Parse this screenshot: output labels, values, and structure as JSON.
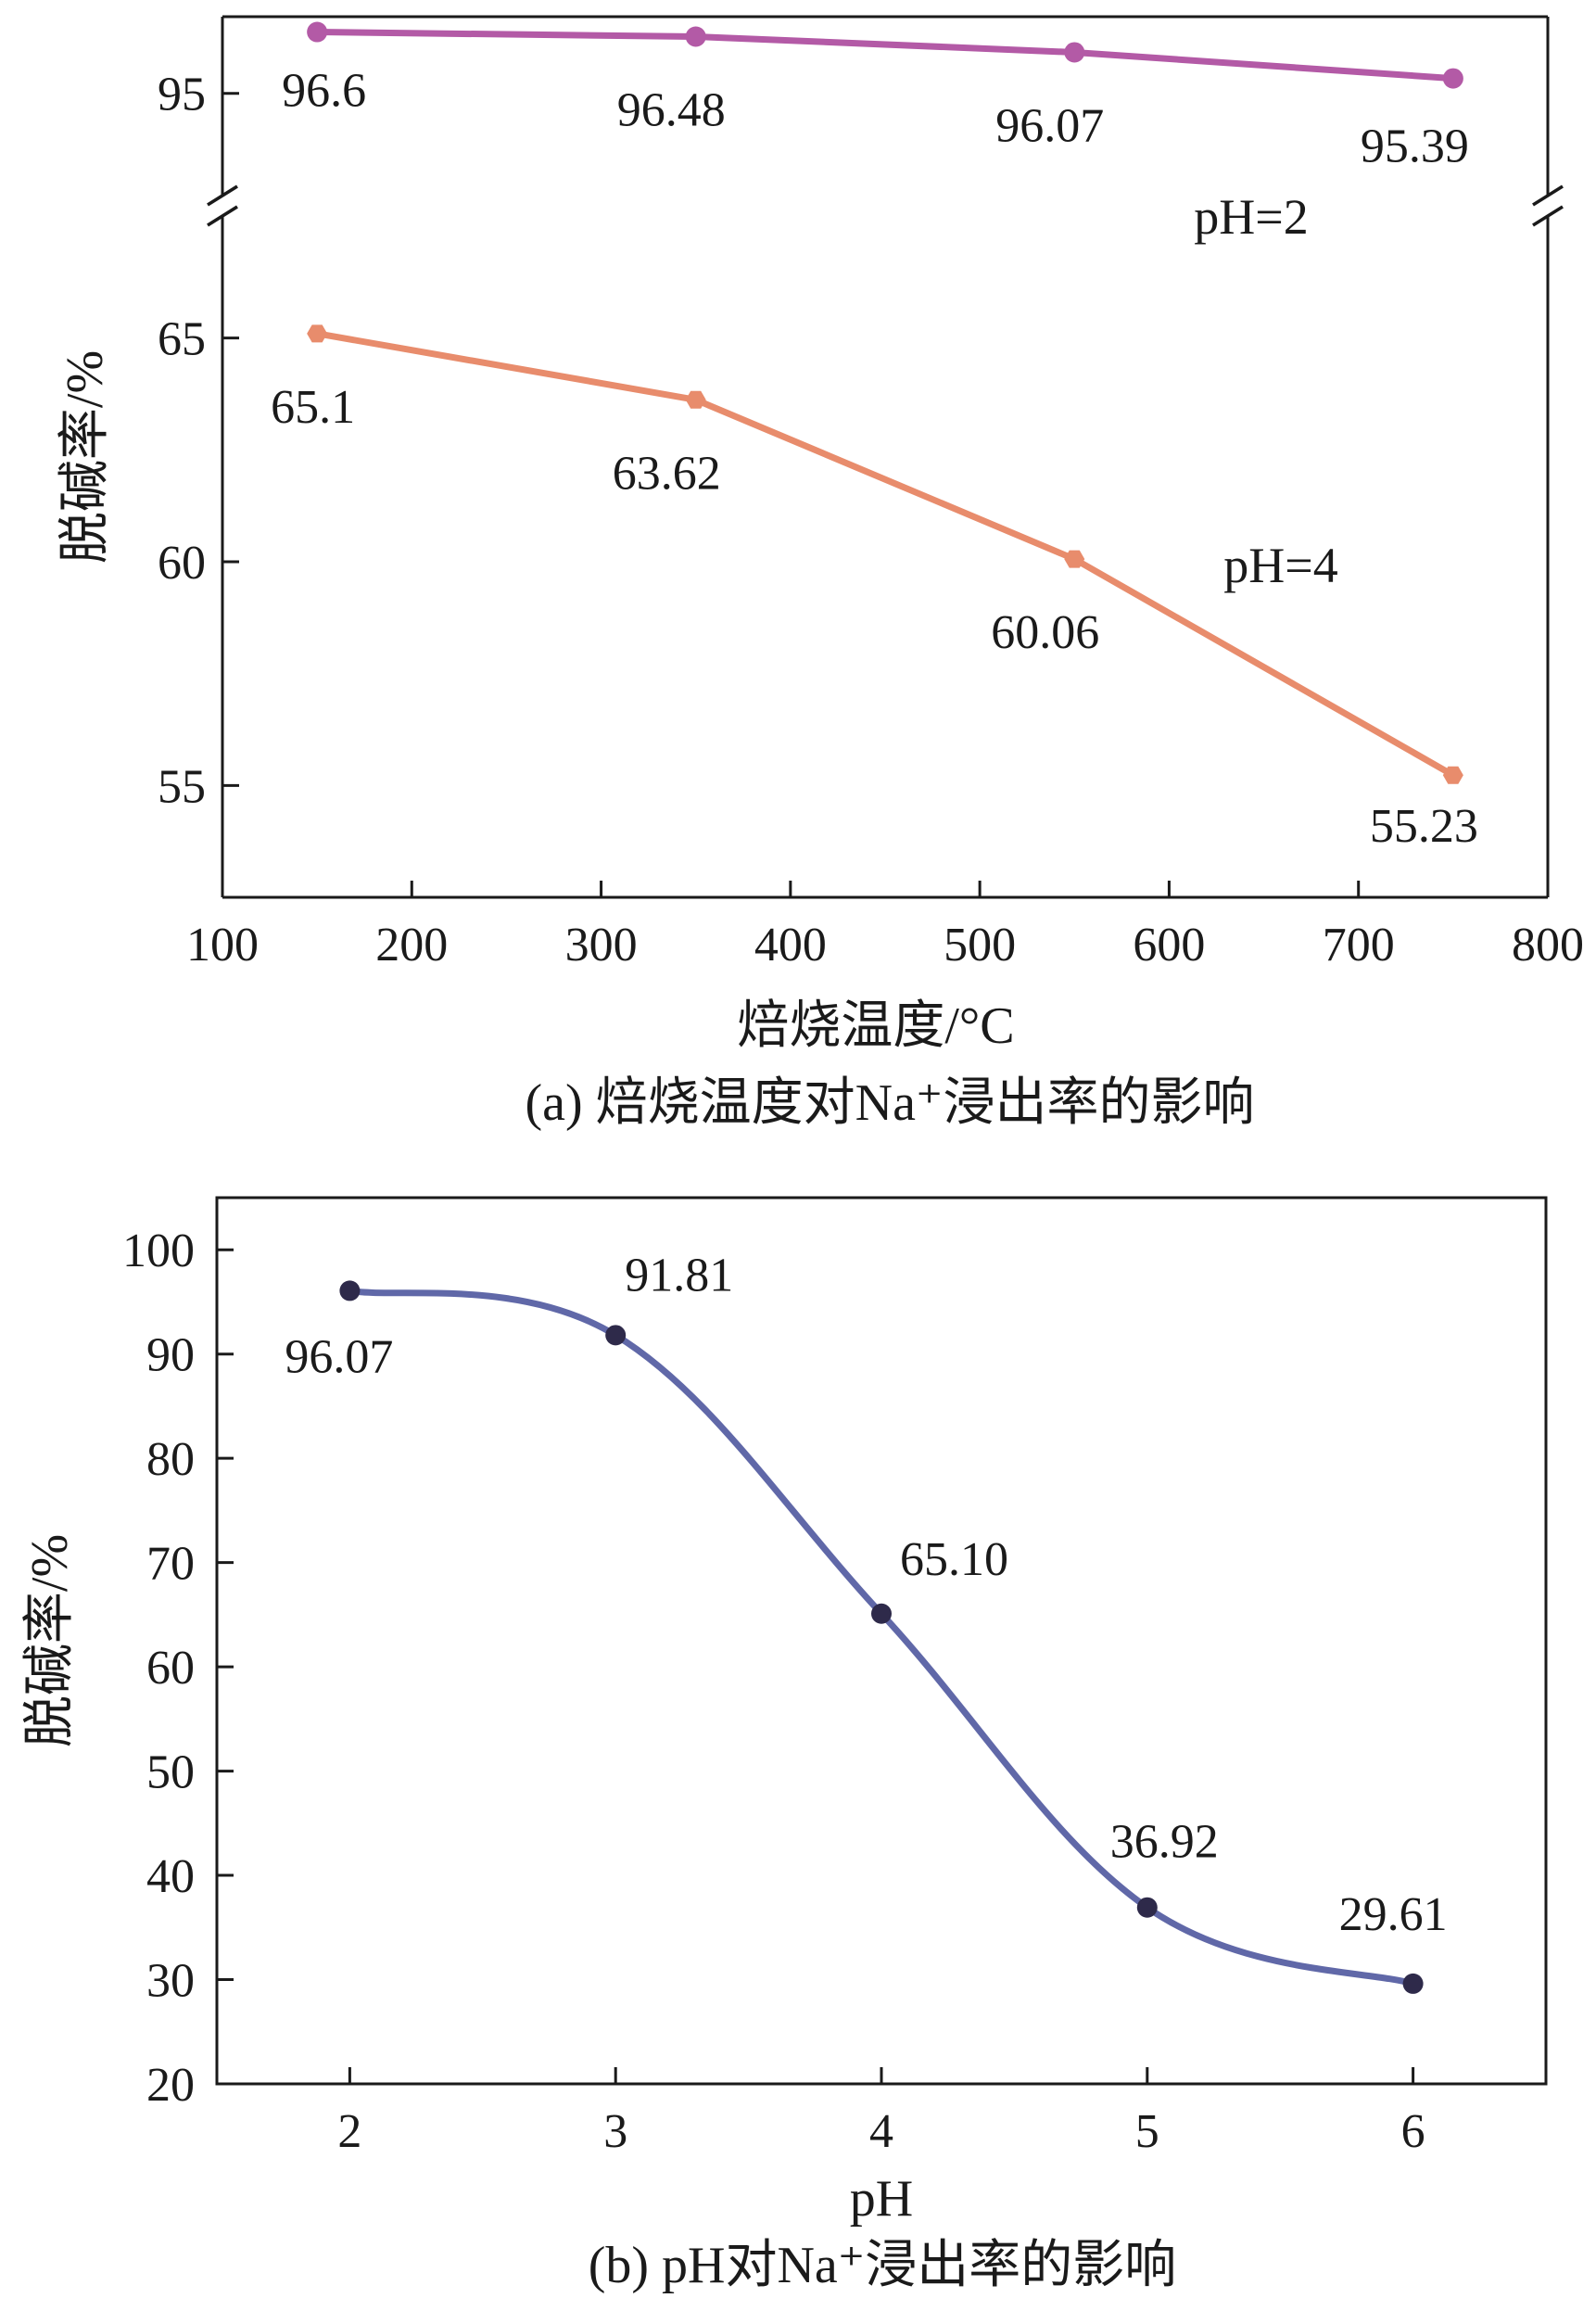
{
  "chart_data": [
    {
      "type": "line",
      "caption": "(a) 焙烧温度对Na⁺浸出率的影响",
      "xlabel": "焙烧温度/°C",
      "ylabel": "脱碱率/%",
      "xlim": [
        100,
        800
      ],
      "xticks": [
        "100",
        "200",
        "300",
        "400",
        "500",
        "600",
        "700",
        "800"
      ],
      "y_axis_break": true,
      "y_segments": [
        {
          "range": [
            92.6,
            97.0
          ],
          "ticks": [
            "95"
          ]
        },
        {
          "range": [
            52.5,
            67.5
          ],
          "ticks": [
            "55",
            "60",
            "65"
          ]
        }
      ],
      "grid": false,
      "series": [
        {
          "name": "pH=2",
          "color": "#b35aa6",
          "x": [
            150,
            350,
            550,
            750
          ],
          "values": [
            96.6,
            96.48,
            96.07,
            95.39
          ],
          "labels": [
            "96.6",
            "96.48",
            "96.07",
            "95.39"
          ]
        },
        {
          "name": "pH=4",
          "color": "#e88c6c",
          "x": [
            150,
            350,
            550,
            750
          ],
          "values": [
            65.1,
            63.62,
            60.06,
            55.23
          ],
          "labels": [
            "65.1",
            "63.62",
            "60.06",
            "55.23"
          ]
        }
      ]
    },
    {
      "type": "line",
      "caption": "(b) pH对Na⁺浸出率的影响",
      "xlabel": "pH",
      "ylabel": "脱碱率/%",
      "xlim": [
        1.5,
        6.5
      ],
      "ylim": [
        20,
        105
      ],
      "xticks": [
        "2",
        "3",
        "4",
        "5",
        "6"
      ],
      "yticks": [
        "20",
        "30",
        "40",
        "50",
        "60",
        "70",
        "80",
        "90",
        "100"
      ],
      "grid": false,
      "series": [
        {
          "color": "#6068a8",
          "x": [
            2,
            3,
            4,
            5,
            6
          ],
          "values": [
            96.07,
            91.81,
            65.1,
            36.92,
            29.61
          ],
          "labels": [
            "96.07",
            "91.81",
            "65.10",
            "36.92",
            "29.61"
          ]
        }
      ]
    }
  ]
}
